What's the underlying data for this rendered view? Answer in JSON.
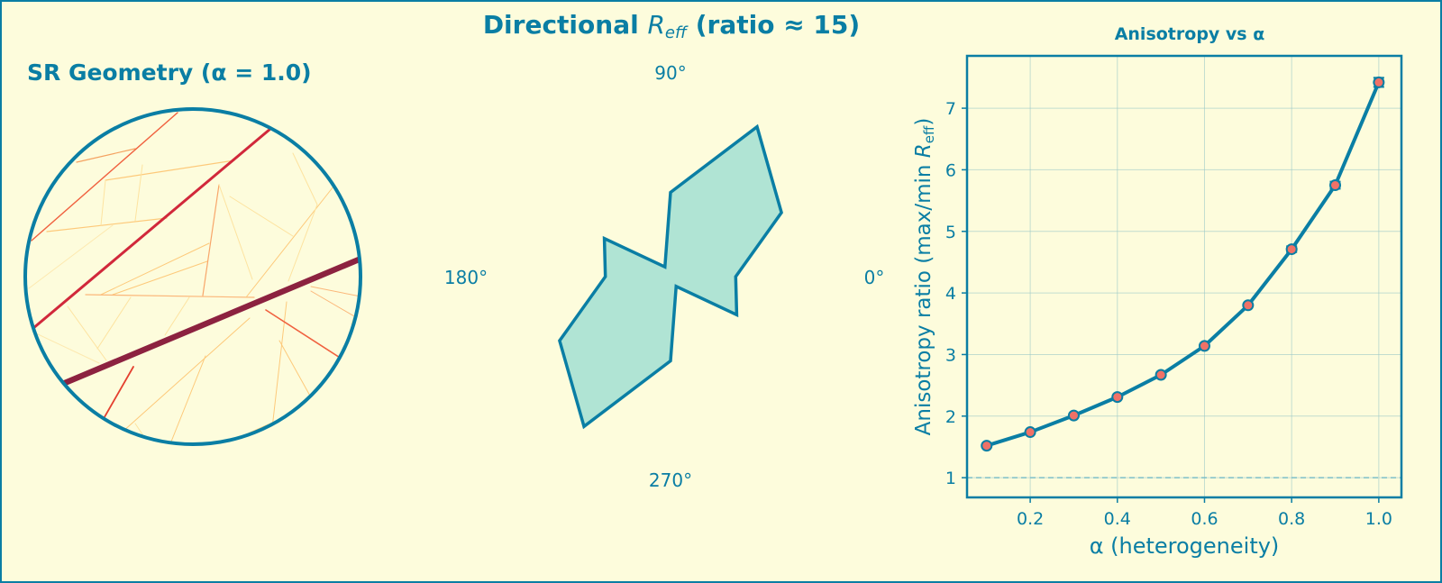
{
  "colors": {
    "primary": "#0a7ea4",
    "background": "#fdfcdc",
    "fill": "#b0e4d4",
    "marker": "#f07167",
    "grid": "#9cc9c8"
  },
  "suptitle": {
    "prefix": "Directional ",
    "symbol": "R",
    "subscript": "eff",
    "suffix": " (ratio ≈ 15)"
  },
  "chart_data": [
    {
      "type": "network",
      "title": "SR Geometry (α = 1.0)",
      "boundary": "circle"
    },
    {
      "type": "polar",
      "angle_labels": [
        "0°",
        "90°",
        "180°",
        "270°"
      ],
      "angles_deg": [
        0,
        30,
        60,
        90,
        120,
        150,
        180,
        210,
        240,
        270,
        300,
        330
      ],
      "r_relative": [
        5.8,
        11.4,
        15.4,
        7.5,
        1.0,
        6.8,
        5.8,
        11.4,
        15.4,
        7.5,
        1.0,
        6.8
      ],
      "fill": "#b0e4d4"
    },
    {
      "type": "line",
      "title": "Anisotropy vs α",
      "xlabel": "α (heterogeneity)",
      "ylabel_prefix": "Anisotropy ratio (max/min ",
      "ylabel_symbol": "R",
      "ylabel_sub": "eff",
      "ylabel_suffix": ")",
      "x": [
        0.1,
        0.2,
        0.3,
        0.4,
        0.5,
        0.6,
        0.7,
        0.8,
        0.9,
        1.0
      ],
      "y": [
        1.52,
        1.74,
        2.01,
        2.31,
        2.67,
        3.14,
        3.8,
        4.71,
        5.75,
        7.42
      ],
      "xlim": [
        0.055,
        1.052
      ],
      "ylim": [
        0.68,
        7.85
      ],
      "xticks": [
        "0.2",
        "0.4",
        "0.6",
        "0.8",
        "1.0"
      ],
      "xtick_values": [
        0.2,
        0.4,
        0.6,
        0.8,
        1.0
      ],
      "yticks": [
        "1",
        "2",
        "3",
        "4",
        "5",
        "6",
        "7"
      ],
      "ytick_values": [
        1,
        2,
        3,
        4,
        5,
        6,
        7
      ],
      "reference_line": 1,
      "grid": true,
      "error_bars": true
    }
  ]
}
